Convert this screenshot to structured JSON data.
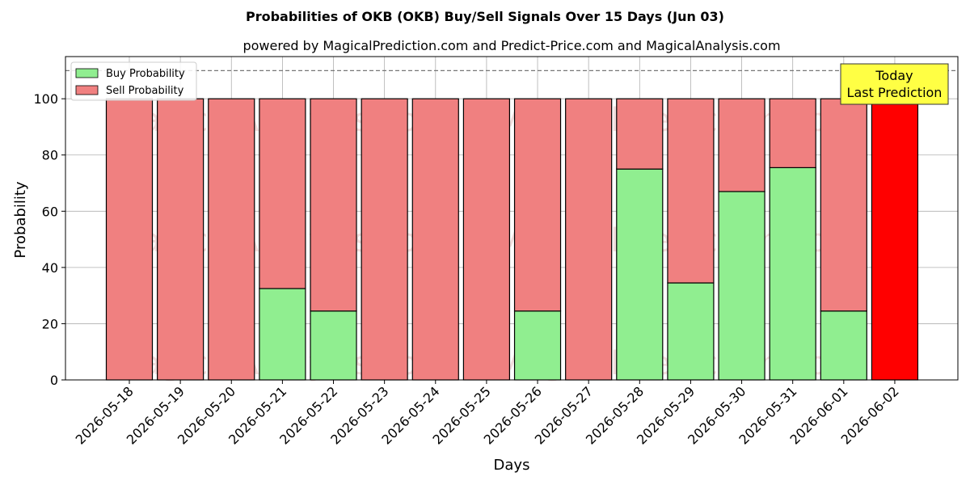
{
  "chart_data": {
    "type": "bar",
    "stacked": true,
    "title": "Probabilities of OKB (OKB) Buy/Sell Signals Over 15 Days (Jun 03)",
    "subtitle": "powered by MagicalPrediction.com and Predict-Price.com and MagicalAnalysis.com",
    "xlabel": "Days",
    "ylabel": "Probability",
    "ylim": [
      0,
      115
    ],
    "yticks": [
      0,
      20,
      40,
      60,
      80,
      100
    ],
    "reference_line": 110,
    "grid": true,
    "legend_position": "top-left",
    "categories": [
      "2026-05-18",
      "2026-05-19",
      "2026-05-20",
      "2026-05-21",
      "2026-05-22",
      "2026-05-23",
      "2026-05-24",
      "2026-05-25",
      "2026-05-26",
      "2026-05-27",
      "2026-05-28",
      "2026-05-29",
      "2026-05-30",
      "2026-05-31",
      "2026-06-01",
      "2026-06-02"
    ],
    "series": [
      {
        "name": "Buy Probability",
        "color": "#90ee90",
        "values": [
          0,
          0,
          0,
          32.5,
          24.5,
          0,
          0,
          0,
          24.5,
          0,
          75,
          34.5,
          67,
          75.5,
          24.5,
          0
        ]
      },
      {
        "name": "Sell Probability",
        "color": "#f08080",
        "values": [
          100,
          100,
          100,
          67.5,
          75.5,
          100,
          100,
          100,
          75.5,
          100,
          25,
          65.5,
          33,
          24.5,
          75.5,
          100
        ]
      }
    ],
    "highlight": {
      "index": 15,
      "color": "#ff0000"
    },
    "annotation": {
      "lines": [
        "Today",
        "Last Prediction"
      ],
      "background": "#ffff44"
    },
    "watermarks": [
      "MagicalAnalysis.com",
      "MagicalPrediction.com"
    ]
  }
}
